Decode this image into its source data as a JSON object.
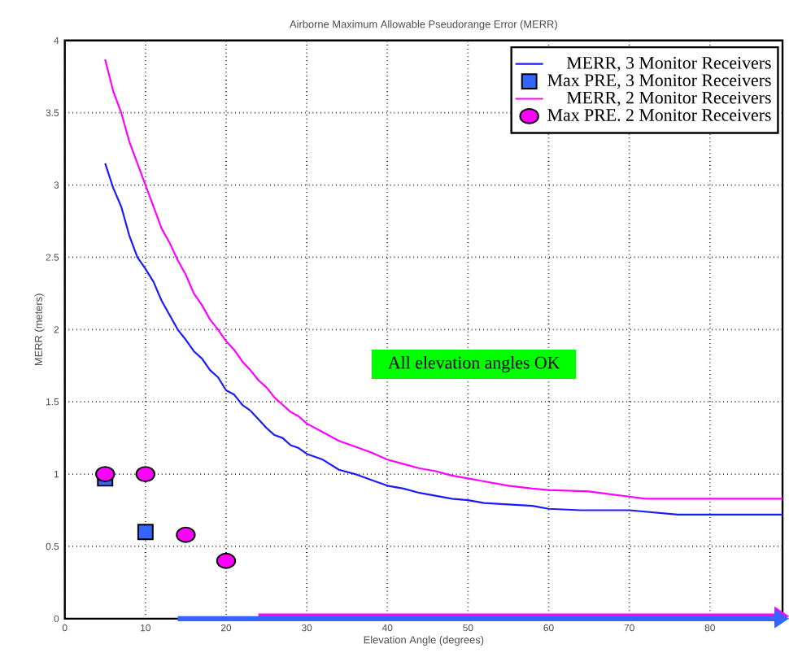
{
  "chart_data": {
    "type": "line",
    "title": "Airborne Maximum Allowable Pseudorange Error (MERR)",
    "xlabel": "Elevation Angle (degrees)",
    "ylabel": "MERR (meters)",
    "xlim": [
      0,
      89
    ],
    "ylim": [
      0,
      4
    ],
    "xticks": [
      0,
      10,
      20,
      30,
      40,
      50,
      60,
      70,
      80
    ],
    "yticks": [
      0,
      0.5,
      1,
      1.5,
      2,
      2.5,
      3,
      3.5,
      4
    ],
    "grid": true,
    "legend": "top right",
    "line_style": "solid",
    "annotations": [
      "All elevation angles OK"
    ],
    "series": [
      {
        "name": "MERR, 3 Monitor Receivers",
        "color": "#1a1aff",
        "marker": "none",
        "x": [
          5,
          6,
          7,
          8,
          9,
          10,
          11,
          12,
          13,
          14,
          15,
          16,
          17,
          18,
          19,
          20,
          21,
          22,
          23,
          24,
          25,
          26,
          27,
          28,
          29,
          30,
          32,
          34,
          36,
          38,
          40,
          42,
          44,
          46,
          48,
          50,
          52,
          55,
          58,
          60,
          64,
          70,
          76,
          89
        ],
        "values": [
          3.15,
          2.98,
          2.85,
          2.65,
          2.5,
          2.42,
          2.33,
          2.2,
          2.1,
          2.0,
          1.93,
          1.85,
          1.8,
          1.72,
          1.67,
          1.58,
          1.55,
          1.48,
          1.44,
          1.38,
          1.32,
          1.27,
          1.25,
          1.2,
          1.18,
          1.14,
          1.1,
          1.03,
          1.0,
          0.96,
          0.92,
          0.9,
          0.87,
          0.85,
          0.83,
          0.82,
          0.8,
          0.79,
          0.78,
          0.76,
          0.75,
          0.75,
          0.72,
          0.72
        ]
      },
      {
        "name": "Max PRE, 3 Monitor Receivers",
        "type": "scatter",
        "color": "#3366ff",
        "marker": "square",
        "x": [
          5,
          10
        ],
        "values": [
          0.97,
          0.6
        ]
      },
      {
        "name": "MERR, 2 Monitor Receivers",
        "color": "#ff00ff",
        "marker": "none",
        "x": [
          5,
          6,
          7,
          8,
          9,
          10,
          11,
          12,
          13,
          14,
          15,
          16,
          17,
          18,
          19,
          20,
          21,
          22,
          23,
          24,
          25,
          26,
          27,
          28,
          29,
          30,
          32,
          34,
          36,
          38,
          40,
          42,
          44,
          46,
          48,
          50,
          52,
          55,
          58,
          60,
          65,
          72,
          89
        ],
        "values": [
          3.87,
          3.65,
          3.5,
          3.3,
          3.15,
          3.0,
          2.85,
          2.7,
          2.6,
          2.48,
          2.38,
          2.25,
          2.17,
          2.07,
          2.0,
          1.92,
          1.86,
          1.78,
          1.72,
          1.65,
          1.6,
          1.53,
          1.48,
          1.43,
          1.4,
          1.35,
          1.29,
          1.23,
          1.19,
          1.15,
          1.1,
          1.07,
          1.04,
          1.02,
          0.99,
          0.97,
          0.95,
          0.92,
          0.9,
          0.89,
          0.88,
          0.83,
          0.83
        ]
      },
      {
        "name": "Max PRE. 2 Monitor Receivers",
        "type": "scatter",
        "color": "#ff00ff",
        "marker": "circle",
        "x": [
          5,
          10,
          15,
          20
        ],
        "values": [
          1.0,
          1.0,
          0.58,
          0.4
        ]
      }
    ]
  }
}
